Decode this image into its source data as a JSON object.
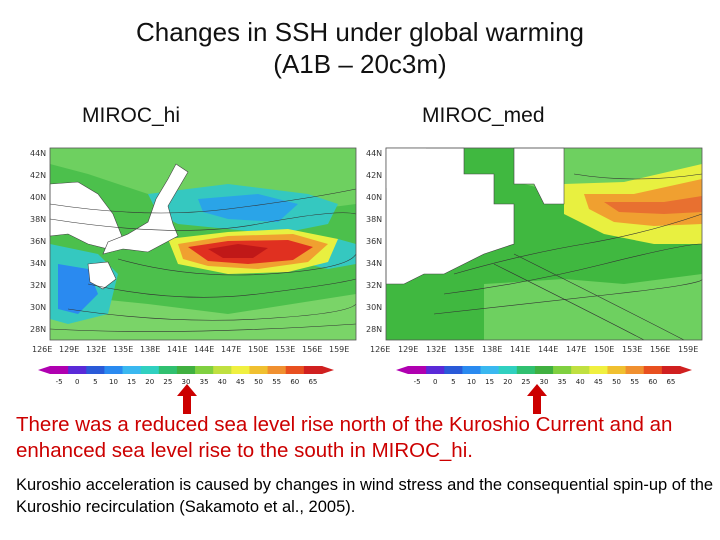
{
  "slide": {
    "title_line1": "Changes in SSH under global warming",
    "title_line2": "(A1B – 20c3m)",
    "panels": [
      {
        "label": "MIROC_hi",
        "lat_labels": [
          "44N",
          "42N",
          "40N",
          "38N",
          "36N",
          "34N",
          "32N",
          "30N",
          "28N"
        ],
        "lon_labels": [
          "126E",
          "129E",
          "132E",
          "135E",
          "138E",
          "141E",
          "144E",
          "147E",
          "150E",
          "153E",
          "156E",
          "159E"
        ]
      },
      {
        "label": "MIROC_med",
        "lat_labels": [
          "44N",
          "42N",
          "40N",
          "38N",
          "36N",
          "34N",
          "32N",
          "30N",
          "28N"
        ],
        "lon_labels": [
          "126E",
          "129E",
          "132E",
          "135E",
          "138E",
          "141E",
          "144E",
          "147E",
          "150E",
          "153E",
          "156E",
          "159E"
        ]
      }
    ],
    "colorbar": {
      "ticks": [
        "-5",
        "0",
        "5",
        "10",
        "15",
        "20",
        "25",
        "30",
        "35",
        "40",
        "45",
        "50",
        "55",
        "60",
        "65"
      ],
      "colors": [
        "#b000b0",
        "#5a2ad8",
        "#2a5ad8",
        "#2a8af0",
        "#3ab8f0",
        "#30d0c0",
        "#30c070",
        "#40b040",
        "#80d040",
        "#c0e040",
        "#f0f040",
        "#f0c030",
        "#f09030",
        "#e85020",
        "#d02020"
      ]
    },
    "text_main": "There was a reduced sea level rise north of the Kuroshio Current and an enhanced sea level rise to the south in MIROC_hi.",
    "text_sub": "Kuroshio acceleration is caused by changes in wind stress and the consequential spin-up of the Kuroshio recirculation (Sakamoto et al., 2005).",
    "accent_color": "#cc0000"
  }
}
